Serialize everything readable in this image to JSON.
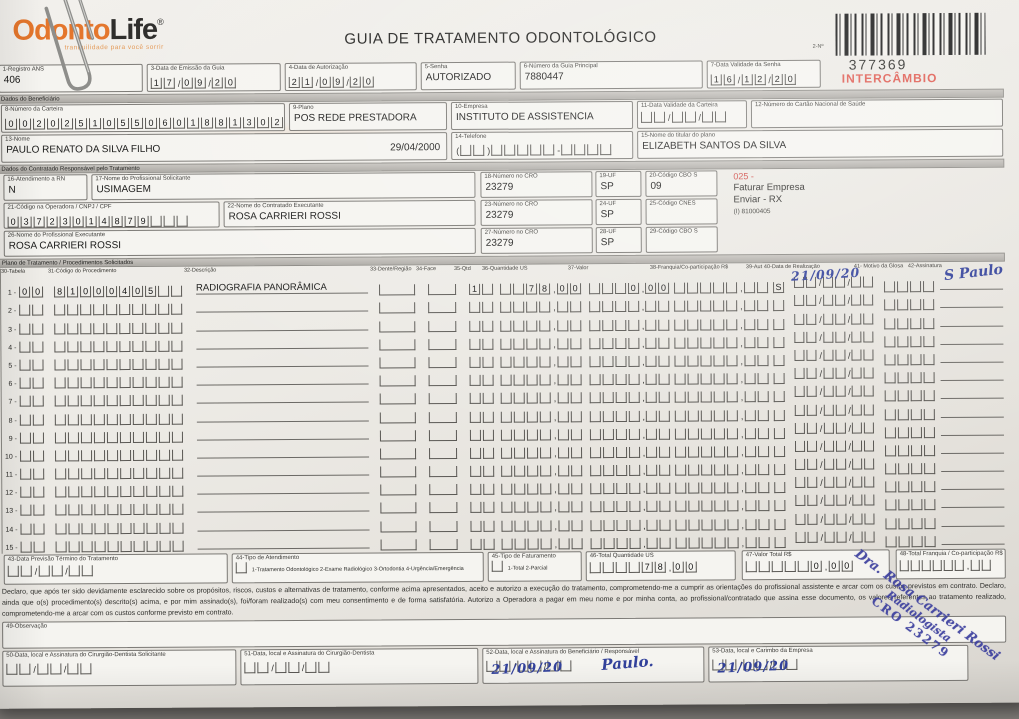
{
  "brand": {
    "odonto": "Odonto",
    "life": "Life",
    "reg": "®",
    "tagline": "tranquilidade para você sorrir",
    "orange": "#e4762c"
  },
  "header": {
    "title": "GUIA DE TRATAMENTO ODONTOLÓGICO",
    "barcode_no_label": "2-Nº",
    "guide_number": "377369",
    "intercambio": "INTERCÂMBIO",
    "red": "#df5a50"
  },
  "side_notes": {
    "code": "025 -",
    "line1": "Faturar Empresa",
    "line2": "Enviar - RX",
    "line3": "(I) 81000405"
  },
  "sections": {
    "beneficiario": "Dados do Beneficiário",
    "contratado": "Dados do Contratado Responsável pelo Tratamento",
    "plano": "Plano de Tratamento / Procedimentos Solicitados"
  },
  "fields": {
    "f1": {
      "label": "1-Registro ANS",
      "value": "406"
    },
    "f3": {
      "label": "3-Data de Emissão da Guia",
      "comb": "17/09/20"
    },
    "f4": {
      "label": "4-Data de Autorização",
      "comb": "21/09/20"
    },
    "f5": {
      "label": "5-Senha",
      "value": "AUTORIZADO"
    },
    "f6": {
      "label": "6-Número da Guia Principal",
      "value": "7880447"
    },
    "f7": {
      "label": "7-Data Validade da Senha",
      "comb": "16/12/20"
    },
    "f8": {
      "label": "8-Número da Carteira",
      "comb": "00202510550601881302"
    },
    "f9": {
      "label": "9-Plano",
      "value": "POS REDE PRESTADORA"
    },
    "f10": {
      "label": "10-Empresa",
      "value": "INSTITUTO DE ASSISTENCIA"
    },
    "f11": {
      "label": "11-Data Validade da Carteira",
      "comb": "  /  /  "
    },
    "f12": {
      "label": "12-Número do Cartão Nacional de Saúde",
      "value": ""
    },
    "f13": {
      "label": "13-Nome",
      "value": "PAULO RENATO DA SILVA FILHO",
      "date": "29/04/2000"
    },
    "f14": {
      "label": "14-Telefone",
      "comb": "(  )     -    "
    },
    "f15": {
      "label": "15-Nome do titular do plano",
      "value": "ELIZABETH SANTOS DA SILVA"
    },
    "f16": {
      "label": "16-Atendimento a RN",
      "value": "N"
    },
    "f17": {
      "label": "17-Nome do Profissional Solicitante",
      "value": "USIMAGEM"
    },
    "f18": {
      "label": "18-Número no CRO",
      "value": "23279"
    },
    "f19": {
      "label": "19-UF",
      "value": "SP"
    },
    "f20": {
      "label": "20-Código CBO S",
      "value": "09"
    },
    "f21": {
      "label": "21-Código na Operadora / CNPJ / CPF",
      "comb": "03723014879   "
    },
    "f22": {
      "label": "22-Nome do Contratado Executante",
      "value": "ROSA CARRIERI ROSSI"
    },
    "f23": {
      "label": "23-Número no CRO",
      "value": "23279"
    },
    "f24": {
      "label": "24-UF",
      "value": "SP"
    },
    "f25": {
      "label": "25-Código CNES",
      "value": ""
    },
    "f26": {
      "label": "26-Nome do Profissional Executante",
      "value": "ROSA CARRIERI ROSSI"
    },
    "f27": {
      "label": "27-Número no CRO",
      "value": "23279"
    },
    "f28": {
      "label": "28-UF",
      "value": "SP"
    },
    "f29": {
      "label": "29-Código CBO S",
      "value": ""
    }
  },
  "table": {
    "headers": [
      "30-Tabela",
      "31-Código do Procedimento",
      "32-Descrição",
      "33-Dente/Região",
      "34-Face",
      "35-Qtd",
      "36-Quantidade US",
      "37-Valor",
      "38-Franquia/Co-participação R$",
      "39-Aut",
      "40-Data de Realização",
      "41- Motivo da Glosa",
      "42-Assinatura"
    ],
    "empty_row": {
      "tabela": "  ",
      "codigo": "          ",
      "desc": "",
      "dente": " ",
      "face": " ",
      "qtd": "  ",
      "qus": "    ,  ",
      "valor": "    ,  ",
      "franquia": "     ,  ",
      "aut": " ",
      "data": "  /  /  ",
      "glosa": "    ",
      "ink_data": "",
      "ink_sig": ""
    },
    "rows": [
      {
        "n": "1",
        "tabela": "00",
        "codigo": "81000405  ",
        "desc": "RADIOGRAFIA PANORÂMICA",
        "qtd": "1 ",
        "qus": "  78,00",
        "valor": "   0,00",
        "aut": "S",
        "ink_data": "21/09/20",
        "ink_sig": "S Paulo"
      },
      {
        "n": "2"
      },
      {
        "n": "3"
      },
      {
        "n": "4"
      },
      {
        "n": "5"
      },
      {
        "n": "6"
      },
      {
        "n": "7"
      },
      {
        "n": "8"
      },
      {
        "n": "9"
      },
      {
        "n": "10"
      },
      {
        "n": "11"
      },
      {
        "n": "12"
      },
      {
        "n": "13"
      },
      {
        "n": "14"
      },
      {
        "n": "15"
      }
    ]
  },
  "footer": {
    "f43": {
      "label": "43-Data Previsão Término do Tratamento",
      "comb": "  /  /  "
    },
    "f44": {
      "label": "44-Tipo de Atendimento",
      "box": " ",
      "options": "1-Tratamento Odontológico  2-Exame Radiológico  3-Ortodontia  4-Urgência/Emergência"
    },
    "f45": {
      "label": "45-Tipo de Faturamento",
      "box": " ",
      "options": "1-Total  2-Parcial"
    },
    "f46": {
      "label": "46-Total Quantidade US",
      "comb": "    78,00"
    },
    "f47": {
      "label": "47-Valor Total R$",
      "comb": "     0,00"
    },
    "f48": {
      "label": "48-Total Franquia / Co-participação R$",
      "comb": "      ,  "
    }
  },
  "declaration": "Declaro, que após ter sido devidamente esclarecido sobre os propósitos, riscos, custos e alternativas de tratamento, conforme acima apresentados, aceito e autorizo a execução do tratamento, comprometendo-me a cumprir as orientações do profissional assistente e arcar com os custos previstos em contrato. Declaro, ainda que o(s) procedimento(s) descrito(s) acima, e por mim assinado(s), foi/foram realizado(s) com meu consentimento e de forma satisfatória. Autorizo a Operadora a pagar em meu nome e por minha conta, ao profissional/contratado que assina esse documento, os valores referentes ao tratamento realizado, comprometendo-me a arcar com os custos conforme previsto em contrato.",
  "observation": {
    "label": "49-Observação",
    "value": ""
  },
  "signatures": {
    "f50": {
      "label": "50-Data, local e Assinatura do Cirurgião-Dentista Solicitante",
      "comb": "  /  /  "
    },
    "f51": {
      "label": "51-Data, local e Assinatura do Cirurgião-Dentista",
      "comb": "  /  /  "
    },
    "f52": {
      "label": "52-Data, local e Assinatura do Beneficiário / Responsável",
      "comb": "  /  /  ",
      "ink_date": "21/09/20",
      "ink_sig": "Paulo."
    },
    "f53": {
      "label": "53-Data, local e Carimbo da Empresa",
      "comb": "  /  /  ",
      "ink_date": "21/09/20"
    }
  },
  "stamp": {
    "line1": "Dra. Rosa Carrieri Rossi",
    "line2": "Radiologista",
    "line3": "CRO 23279",
    "color": "#3c3f9e"
  },
  "ink_color": "#32419b"
}
